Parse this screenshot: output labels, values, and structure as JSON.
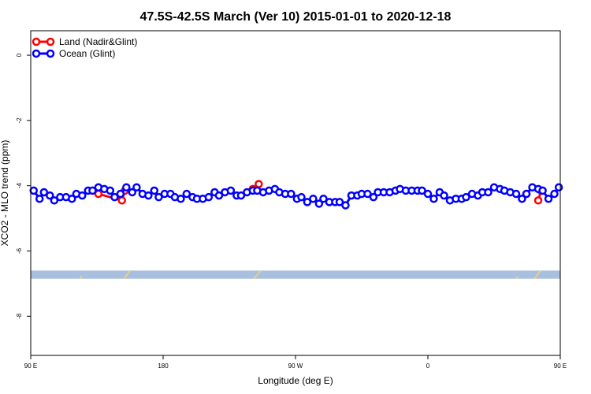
{
  "chart_data": {
    "type": "line",
    "title": "47.5S-42.5S March (Ver 10)   2015-01-01 to 2020-12-18",
    "xlabel": "Longitude (deg E)",
    "ylabel": "XCO2 - MLO trend (ppm)",
    "xlim": [
      90,
      450
    ],
    "ylim": [
      -9.2,
      0.75
    ],
    "x_ticks": [
      {
        "value": 90,
        "label": "90 E"
      },
      {
        "value": 180,
        "label": "180"
      },
      {
        "value": 270,
        "label": "90 W"
      },
      {
        "value": 360,
        "label": "0"
      },
      {
        "value": 450,
        "label": "90 E"
      },
      {
        "value": 540,
        "label": "180"
      }
    ],
    "y_ticks": [
      {
        "value": 0,
        "label": "0"
      },
      {
        "value": -2,
        "label": "-2"
      },
      {
        "value": -4,
        "label": "-4"
      },
      {
        "value": -6,
        "label": "-6"
      },
      {
        "value": -8,
        "label": "-8"
      }
    ],
    "legend_position": "top-left",
    "land_band": {
      "y_range": [
        -6.85,
        -6.6
      ],
      "color": "#a9bfdf",
      "land_color": "#f7d36b"
    },
    "series": [
      {
        "name": "Land (Nadir&Glint)",
        "color": "#ff0000",
        "segments": [
          [
            [
              136,
              -4.25
            ],
            [
              152,
              -4.45
            ],
            [
              154,
              -4.15
            ]
          ],
          [
            [
              241,
              -4.1
            ],
            [
              245,
              -3.95
            ]
          ],
          [
            [
              427,
              -4.25
            ]
          ],
          [
            [
              435,
              -4.45
            ],
            [
              437,
              -4.15
            ]
          ]
        ]
      },
      {
        "name": "Ocean (Glint)",
        "color": "#0000ff",
        "x": [
          92,
          96,
          99,
          103,
          106,
          110,
          114,
          118,
          121,
          125,
          129,
          132,
          136,
          140,
          144,
          147,
          151,
          155,
          159,
          162,
          166,
          170,
          174,
          177,
          181,
          185,
          188,
          192,
          196,
          200,
          203,
          207,
          211,
          215,
          218,
          222,
          226,
          230,
          233,
          237,
          241,
          244,
          248,
          252,
          256,
          259,
          263,
          267,
          271,
          274,
          278,
          282,
          286,
          289,
          293,
          297,
          300,
          304,
          308,
          312,
          315,
          319,
          323,
          326,
          330,
          334,
          338,
          341,
          345,
          349,
          353,
          356,
          360,
          364,
          368,
          371,
          375,
          379,
          383,
          386,
          390,
          394,
          397,
          401,
          405,
          409,
          412,
          416,
          420,
          424,
          427,
          431,
          435,
          438,
          442,
          446,
          449
        ],
        "y": [
          -4.15,
          -4.4,
          -4.2,
          -4.3,
          -4.45,
          -4.35,
          -4.35,
          -4.4,
          -4.25,
          -4.3,
          -4.15,
          -4.15,
          -4.05,
          -4.1,
          -4.15,
          -4.35,
          -4.25,
          -4.05,
          -4.2,
          -4.05,
          -4.25,
          -4.3,
          -4.15,
          -4.35,
          -4.25,
          -4.25,
          -4.35,
          -4.4,
          -4.25,
          -4.35,
          -4.4,
          -4.4,
          -4.35,
          -4.2,
          -4.3,
          -4.2,
          -4.15,
          -4.3,
          -4.3,
          -4.2,
          -4.15,
          -4.15,
          -4.2,
          -4.15,
          -4.1,
          -4.2,
          -4.25,
          -4.25,
          -4.4,
          -4.35,
          -4.5,
          -4.4,
          -4.55,
          -4.4,
          -4.5,
          -4.5,
          -4.5,
          -4.6,
          -4.3,
          -4.3,
          -4.25,
          -4.25,
          -4.35,
          -4.2,
          -4.2,
          -4.2,
          -4.15,
          -4.1,
          -4.15,
          -4.15,
          -4.15,
          -4.15,
          -4.25,
          -4.4,
          -4.2,
          -4.3,
          -4.45,
          -4.4,
          -4.4,
          -4.35,
          -4.25,
          -4.3,
          -4.2,
          -4.2,
          -4.05,
          -4.1,
          -4.15,
          -4.2,
          -4.25,
          -4.4,
          -4.25,
          -4.05,
          -4.1,
          -4.15,
          -4.4,
          -4.25,
          -4.05
        ]
      }
    ]
  }
}
